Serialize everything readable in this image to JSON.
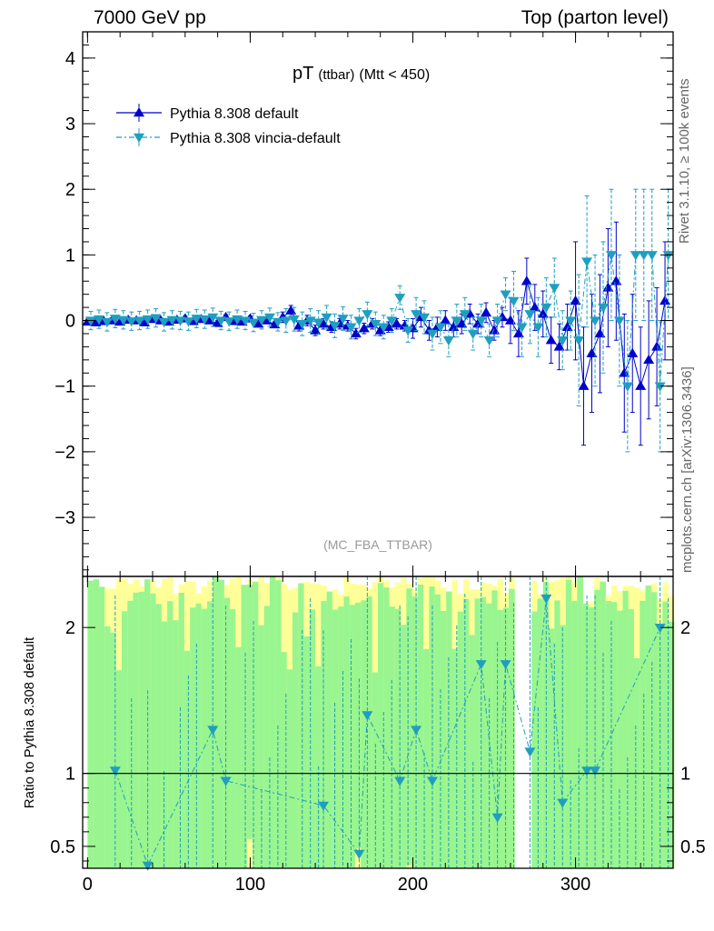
{
  "header": {
    "left": "7000 GeV pp",
    "right": "Top (parton level)"
  },
  "side_labels": {
    "rivet": "Rivet 3.1.10, ≥ 100k events",
    "source": "mcplots.cern.ch [arXiv:1306.3436]"
  },
  "watermark": "(MC_FBA_TTBAR)",
  "colors": {
    "default": "#0000cc",
    "vincia": "#1f9fbf",
    "band_inner": "#99f58f",
    "band_outer": "#ffff99"
  },
  "chart_data": [
    {
      "type": "line",
      "title": "pT",
      "title_sub": "(ttbar)",
      "title_suffix": "(Mtt < 450)",
      "ylim": [
        -3.9,
        4.4
      ],
      "xlim": [
        -3,
        360
      ],
      "y_ticks": [
        "4",
        "3",
        "2",
        "1",
        "0",
        "−1",
        "−2",
        "−3"
      ],
      "y_tick_values": [
        4,
        3,
        2,
        1,
        0,
        -1,
        -2,
        -3
      ],
      "legend_position": "top-left",
      "series": [
        {
          "name": "Pythia 8.308 default",
          "x": [
            0,
            5,
            10,
            15,
            20,
            25,
            30,
            35,
            40,
            45,
            50,
            55,
            60,
            65,
            70,
            75,
            80,
            85,
            90,
            95,
            100,
            105,
            110,
            115,
            120,
            125,
            130,
            135,
            140,
            145,
            150,
            155,
            160,
            165,
            170,
            175,
            180,
            185,
            190,
            195,
            200,
            205,
            210,
            215,
            220,
            225,
            230,
            235,
            240,
            245,
            250,
            255,
            260,
            265,
            270,
            275,
            280,
            285,
            290,
            295,
            300,
            305,
            310,
            315,
            320,
            325,
            330,
            335,
            340,
            345,
            350,
            355
          ],
          "y": [
            -0.02,
            -0.03,
            -0.01,
            0.0,
            -0.02,
            0.01,
            0.0,
            -0.03,
            0.02,
            0.0,
            -0.02,
            0.01,
            0.03,
            -0.01,
            0.02,
            0.0,
            -0.04,
            0.05,
            -0.01,
            -0.02,
            0.03,
            -0.05,
            0.0,
            -0.06,
            0.05,
            0.15,
            -0.08,
            0.0,
            -0.15,
            -0.05,
            -0.1,
            -0.05,
            -0.08,
            -0.2,
            -0.12,
            -0.05,
            -0.15,
            -0.1,
            -0.05,
            -0.08,
            -0.12,
            0.05,
            -0.15,
            -0.1,
            0.0,
            -0.1,
            -0.05,
            0.1,
            -0.05,
            0.12,
            -0.15,
            0.05,
            0.0,
            -0.2,
            0.6,
            0.2,
            0.1,
            -0.3,
            -0.4,
            -0.1,
            0.3,
            -1.0,
            -0.5,
            -0.2,
            0.5,
            0.6,
            -0.8,
            -0.5,
            -1.0,
            -0.6,
            -0.4,
            0.3
          ]
        },
        {
          "name": "Pythia 8.308 vincia-default",
          "x": [
            2,
            7,
            12,
            17,
            22,
            27,
            32,
            37,
            42,
            47,
            52,
            57,
            62,
            67,
            72,
            77,
            82,
            87,
            92,
            97,
            102,
            107,
            112,
            117,
            122,
            127,
            132,
            137,
            142,
            147,
            152,
            157,
            162,
            167,
            172,
            177,
            182,
            187,
            192,
            197,
            202,
            207,
            212,
            217,
            222,
            227,
            232,
            237,
            242,
            247,
            252,
            257,
            262,
            267,
            272,
            277,
            282,
            287,
            292,
            297,
            302,
            307,
            312,
            317,
            322,
            327,
            332,
            337,
            342,
            347,
            352,
            357
          ],
          "y": [
            0.0,
            0.02,
            -0.02,
            0.03,
            0.01,
            -0.01,
            0.0,
            0.02,
            0.04,
            -0.02,
            0.01,
            0.0,
            -0.01,
            0.03,
            0.02,
            0.05,
            0.0,
            -0.01,
            0.02,
            0.0,
            -0.03,
            0.01,
            0.05,
            -0.02,
            0.0,
            0.02,
            -0.05,
            0.0,
            -0.03,
            0.05,
            -0.08,
            0.03,
            -0.1,
            0.0,
            0.1,
            -0.05,
            -0.1,
            0.0,
            0.35,
            -0.15,
            0.1,
            0.05,
            -0.2,
            -0.1,
            -0.3,
            0.0,
            0.1,
            -0.2,
            0.0,
            -0.3,
            0.0,
            0.4,
            0.3,
            -0.1,
            0.1,
            -0.1,
            0.2,
            0.5,
            -0.3,
            0.0,
            -0.3,
            0.9,
            0.0,
            0.2,
            1.0,
            0.0,
            -1.0,
            1.0,
            1.0,
            1.0,
            -1.0,
            1.0
          ]
        }
      ]
    },
    {
      "type": "line",
      "ylabel": "Ratio to Pythia 8.308 default",
      "ylim": [
        0.35,
        2.35
      ],
      "xlim": [
        -3,
        360
      ],
      "x_ticks": [
        "0",
        "100",
        "200",
        "300"
      ],
      "x_tick_values": [
        0,
        100,
        200,
        300
      ],
      "y_ticks": [
        "0.5",
        "1",
        "2"
      ],
      "y_tick_values": [
        0.5,
        1,
        2
      ],
      "series": [
        {
          "name": "Pythia 8.308 vincia-default",
          "x": [
            17,
            37,
            77,
            85,
            145,
            167,
            172,
            192,
            202,
            212,
            242,
            252,
            257,
            272,
            282,
            292,
            307,
            312,
            352
          ],
          "y": [
            1.02,
            0.37,
            1.3,
            0.95,
            0.78,
            0.45,
            1.4,
            0.95,
            1.3,
            0.95,
            1.75,
            0.7,
            1.75,
            1.15,
            2.2,
            0.8,
            1.02,
            1.02,
            2.0
          ]
        }
      ]
    }
  ]
}
